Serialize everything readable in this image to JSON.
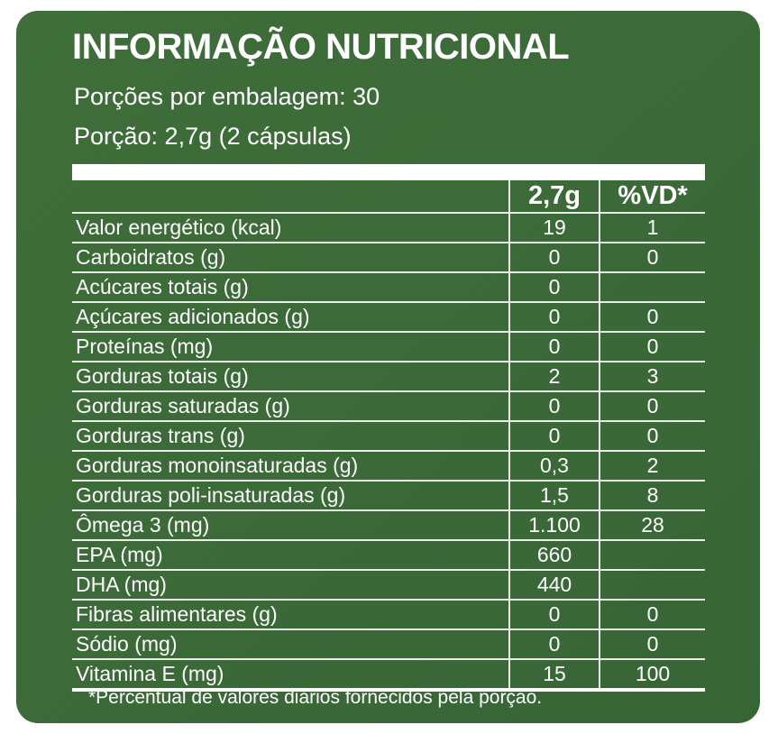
{
  "title": "INFORMAÇÃO NUTRICIONAL",
  "servings_per_package": "Porções por embalagem: 30",
  "serving_size": "Porção: 2,7g (2 cápsulas)",
  "table": {
    "headers": [
      "",
      "2,7g",
      "%VD*"
    ],
    "rows": [
      [
        "Valor energético (kcal)",
        "19",
        "1"
      ],
      [
        "Carboidratos (g)",
        "0",
        "0"
      ],
      [
        "Acúcares totais (g)",
        "0",
        ""
      ],
      [
        "Açúcares adicionados (g)",
        "0",
        "0"
      ],
      [
        "Proteínas (mg)",
        "0",
        "0"
      ],
      [
        "Gorduras totais (g)",
        "2",
        "3"
      ],
      [
        "Gorduras saturadas (g)",
        "0",
        "0"
      ],
      [
        "Gorduras trans (g)",
        "0",
        "0"
      ],
      [
        "Gorduras monoinsaturadas (g)",
        "0,3",
        "2"
      ],
      [
        "Gorduras poli-insaturadas  (g)",
        "1,5",
        "8"
      ],
      [
        "Ômega 3 (mg)",
        "1.100",
        "28"
      ],
      [
        "EPA (mg)",
        "660",
        ""
      ],
      [
        "DHA (mg)",
        "440",
        ""
      ],
      [
        "Fibras alimentares (g)",
        "0",
        "0"
      ],
      [
        "Sódio (mg)",
        "0",
        "0"
      ],
      [
        "Vitamina E (mg)",
        "15",
        "100"
      ]
    ]
  },
  "footnote": "*Percentual de valores diários fornecidos pela porção.",
  "colors": {
    "background": "#3d6b3a",
    "text": "#ffffff"
  }
}
